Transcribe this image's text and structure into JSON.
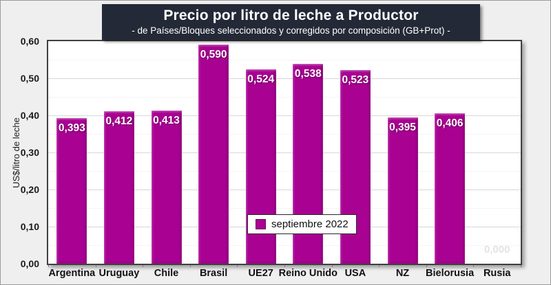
{
  "chart_data": {
    "type": "bar",
    "title": "Precio por litro de leche a Productor",
    "subtitle": "- de Países/Bloques seleccionados y corregidos por composición (GB+Prot) -",
    "ylabel": "US$/litro de leche",
    "xlabel": "",
    "ylim": [
      0,
      0.6
    ],
    "ytick_step": 0.1,
    "minor_tick_step": 0.05,
    "grid": "horizontal, solid major lines with faint dotted minor lines",
    "legend_position": "bottom-center inside plot",
    "series_name": "septiembre 2022",
    "bar_color": "#a90292",
    "title_bg_color": "#232936",
    "categories": [
      "Argentina",
      "Uruguay",
      "Chile",
      "Brasil",
      "UE27",
      "Reino Unido",
      "USA",
      "NZ",
      "Bielorusia",
      "Rusia"
    ],
    "values": [
      0.393,
      0.412,
      0.413,
      0.59,
      0.524,
      0.538,
      0.523,
      0.395,
      0.406,
      0.0
    ],
    "value_labels": [
      "0,393",
      "0,412",
      "0,413",
      "0,590",
      "0,524",
      "0,538",
      "0,523",
      "0,395",
      "0,406",
      "0,000"
    ],
    "yticks": [
      {
        "value": 0.0,
        "label": "0,00"
      },
      {
        "value": 0.1,
        "label": "0,10"
      },
      {
        "value": 0.2,
        "label": "0,20"
      },
      {
        "value": 0.3,
        "label": "0,30"
      },
      {
        "value": 0.4,
        "label": "0,40"
      },
      {
        "value": 0.5,
        "label": "0,50"
      },
      {
        "value": 0.6,
        "label": "0,60"
      }
    ]
  }
}
